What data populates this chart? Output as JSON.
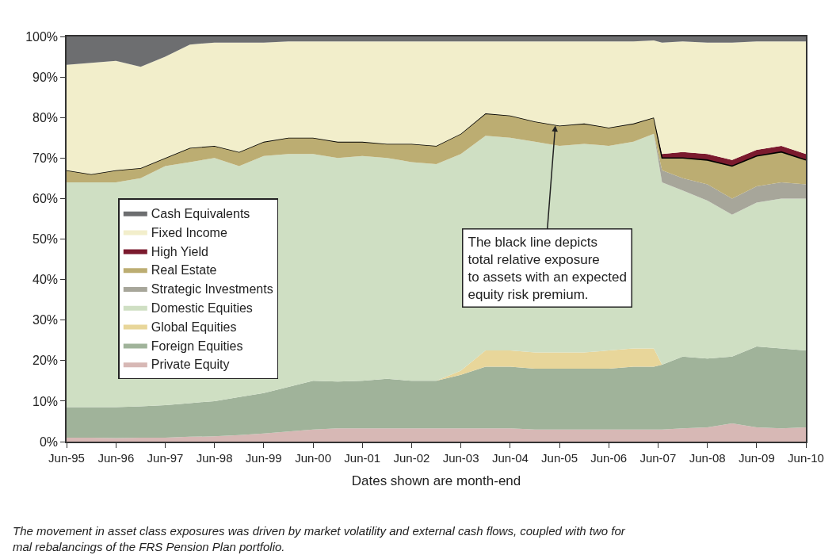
{
  "chart_data": {
    "type": "area",
    "stacked": true,
    "x": [
      "1995-06",
      "1995-12",
      "1996-06",
      "1996-12",
      "1997-06",
      "1997-12",
      "1998-06",
      "1998-12",
      "1999-06",
      "1999-12",
      "2000-06",
      "2000-12",
      "2001-06",
      "2001-12",
      "2002-06",
      "2002-12",
      "2003-06",
      "2003-12",
      "2004-06",
      "2004-12",
      "2005-06",
      "2005-12",
      "2006-06",
      "2006-12",
      "2007-05",
      "2007-07",
      "2007-12",
      "2008-06",
      "2008-12",
      "2009-06",
      "2009-12",
      "2010-06"
    ],
    "series": [
      {
        "name": "Private Equity",
        "color": "#d7b8b5",
        "values": [
          1,
          1,
          0.9,
          1,
          1,
          1.2,
          1.3,
          1.6,
          2,
          2.5,
          3,
          3.3,
          3.3,
          3.3,
          3.3,
          3.3,
          3.3,
          3.3,
          3.3,
          3,
          3,
          3,
          3,
          3,
          3,
          3,
          3.3,
          3.5,
          4.5,
          3.5,
          3.3,
          3.5
        ]
      },
      {
        "name": "Foreign Equities",
        "color": "#a0b39a",
        "values": [
          7.5,
          7.5,
          7.6,
          7.7,
          8,
          8.3,
          8.7,
          9.4,
          10,
          11,
          12,
          11.5,
          11.7,
          12.2,
          11.7,
          11.7,
          13.2,
          15.2,
          15.2,
          15,
          15,
          15,
          15,
          15.5,
          15.5,
          16,
          17.7,
          17,
          16.5,
          20,
          19.7,
          19
        ]
      },
      {
        "name": "Global Equities",
        "color": "#e8d69a",
        "values": [
          0,
          0,
          0,
          0,
          0,
          0,
          0,
          0,
          0,
          0,
          0,
          0,
          0,
          0,
          0,
          0,
          1,
          4,
          4,
          4,
          4,
          4,
          4.5,
          4.5,
          4.5,
          0,
          0,
          0,
          0,
          0,
          0,
          0
        ]
      },
      {
        "name": "Domestic Equities",
        "color": "#cfdfc3",
        "values": [
          55.5,
          55.5,
          55.5,
          56.3,
          59,
          59.5,
          60,
          57,
          58.5,
          57.5,
          56,
          55.2,
          55.5,
          54.5,
          54,
          53.5,
          53.5,
          53,
          52.5,
          52,
          51,
          51.5,
          50.5,
          51,
          53,
          45,
          41,
          39,
          35,
          35.5,
          37,
          37.5
        ]
      },
      {
        "name": "Strategic Investments",
        "color": "#a7a69a",
        "values": [
          0,
          0,
          0,
          0,
          0,
          0,
          0,
          0,
          0,
          0,
          0,
          0,
          0,
          0,
          0,
          0,
          0,
          0,
          0,
          0,
          0,
          0,
          0,
          0,
          0,
          3,
          3,
          4,
          4,
          4,
          4,
          3.5
        ]
      },
      {
        "name": "Real Estate",
        "color": "#bcad72",
        "line_style": "solid",
        "values": [
          3,
          2,
          3,
          2.5,
          2,
          3.5,
          3,
          3.5,
          3.5,
          4,
          4,
          4,
          3.5,
          3.5,
          4.5,
          4.5,
          5,
          5.5,
          5.5,
          5,
          5,
          5,
          4.5,
          4.5,
          4,
          3,
          5,
          6,
          8,
          7.5,
          7.5,
          6
        ]
      },
      {
        "name": "High Yield",
        "color": "#7b1a2e",
        "values": [
          0,
          0,
          0,
          0,
          0,
          0,
          0,
          0,
          0,
          0,
          0,
          0,
          0,
          0,
          0,
          0,
          0,
          0,
          0,
          0,
          0,
          0,
          0,
          0,
          0,
          1,
          1.5,
          1.5,
          1.5,
          1.5,
          1.5,
          1.5
        ]
      },
      {
        "name": "Fixed Income",
        "color": "#f2eecb",
        "values": [
          26,
          27.5,
          27,
          25,
          25,
          25.5,
          25.5,
          27,
          24.5,
          23.8,
          23.8,
          24.8,
          24.8,
          25.3,
          25.3,
          25.8,
          22.8,
          17.8,
          18.3,
          19.8,
          20.8,
          20.3,
          21.3,
          20.3,
          19,
          27.5,
          27.3,
          27.5,
          29,
          26.8,
          25.8,
          27.8
        ]
      },
      {
        "name": "Cash Equivalents",
        "color": "#6d6e70",
        "values": [
          7,
          6.5,
          6,
          7.5,
          5,
          2,
          1.5,
          1.5,
          1.5,
          1.2,
          1.2,
          1.2,
          1.2,
          1.2,
          1.2,
          1.2,
          1.2,
          1.2,
          1.2,
          1.2,
          1.2,
          1.2,
          1.2,
          1.2,
          1,
          1.5,
          1.2,
          1.5,
          1.5,
          1.2,
          1.2,
          1.2
        ]
      }
    ],
    "xlabel": "Dates shown are month-end",
    "xlim": [
      "1995-06",
      "2010-06"
    ],
    "xticks": [
      {
        "value": "1995-06",
        "label": "Jun-95"
      },
      {
        "value": "1996-06",
        "label": "Jun-96"
      },
      {
        "value": "1997-06",
        "label": "Jun-97"
      },
      {
        "value": "1998-06",
        "label": "Jun-98"
      },
      {
        "value": "1999-06",
        "label": "Jun-99"
      },
      {
        "value": "2000-06",
        "label": "Jun-00"
      },
      {
        "value": "2001-06",
        "label": "Jun-01"
      },
      {
        "value": "2002-06",
        "label": "Jun-02"
      },
      {
        "value": "2003-06",
        "label": "Jun-03"
      },
      {
        "value": "2004-06",
        "label": "Jun-04"
      },
      {
        "value": "2005-06",
        "label": "Jun-05"
      },
      {
        "value": "2006-06",
        "label": "Jun-06"
      },
      {
        "value": "2007-06",
        "label": "Jun-07"
      },
      {
        "value": "2008-06",
        "label": "Jun-08"
      },
      {
        "value": "2009-06",
        "label": "Jun-09"
      },
      {
        "value": "2010-06",
        "label": "Jun-10"
      }
    ],
    "ylim": [
      0,
      100
    ],
    "yticks": [
      {
        "value": 0,
        "label": "0%"
      },
      {
        "value": 10,
        "label": "10%"
      },
      {
        "value": 20,
        "label": "20%"
      },
      {
        "value": 30,
        "label": "30%"
      },
      {
        "value": 40,
        "label": "40%"
      },
      {
        "value": 50,
        "label": "50%"
      },
      {
        "value": 60,
        "label": "60%"
      },
      {
        "value": 70,
        "label": "70%"
      },
      {
        "value": 80,
        "label": "80%"
      },
      {
        "value": 90,
        "label": "90%"
      },
      {
        "value": 100,
        "label": "100%"
      }
    ],
    "legend": "left",
    "annotations": [
      {
        "text": "The black line depicts\ntotal relative exposure\nto assets with an expected\nequity risk premium.",
        "x": "2005-05",
        "y": 78
      },
      "The movement in asset class exposures was driven by market volatility and external cash flows, coupled with two for\nmal rebalancings of the FRS Pension Plan portfolio."
    ]
  }
}
